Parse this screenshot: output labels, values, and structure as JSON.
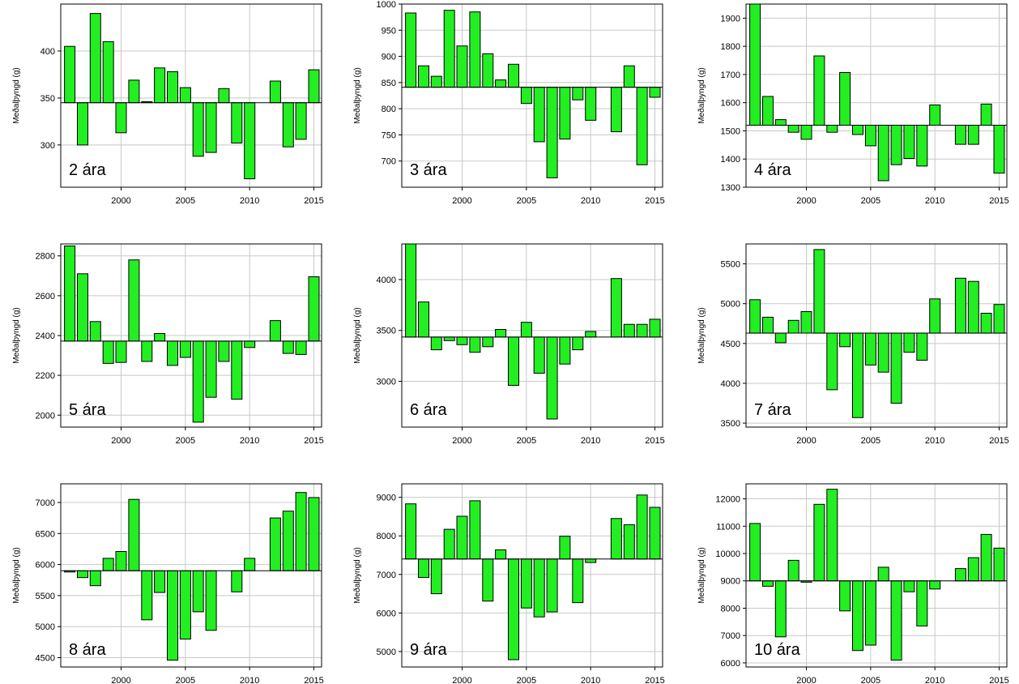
{
  "colors": {
    "bar_fill": "#22ee22",
    "bar_stroke": "#000000",
    "grid": "#c8c8c8",
    "frame": "#000000"
  },
  "chart_data": [
    {
      "type": "bar",
      "title": "",
      "label": "2 ára",
      "ylabel": "Meðalþyngd (g)",
      "years": [
        1996,
        1997,
        1998,
        1999,
        2000,
        2001,
        2002,
        2003,
        2004,
        2005,
        2006,
        2007,
        2008,
        2009,
        2010,
        2011,
        2012,
        2013,
        2014,
        2015
      ],
      "values": [
        405,
        300,
        440,
        410,
        313,
        369,
        346,
        382,
        378,
        361,
        288,
        292,
        360,
        302,
        264,
        null,
        368,
        298,
        306,
        380
      ],
      "baseline": 345,
      "xlim": [
        1995.3,
        2015.6
      ],
      "ylim": [
        255,
        450
      ],
      "xticks": [
        2000,
        2005,
        2010,
        2015
      ],
      "yticks": [
        300,
        350,
        400
      ],
      "grid": true
    },
    {
      "type": "bar",
      "title": "",
      "label": "3 ára",
      "ylabel": "Meðalþyngd (g)",
      "years": [
        1996,
        1997,
        1998,
        1999,
        2000,
        2001,
        2002,
        2003,
        2004,
        2005,
        2006,
        2007,
        2008,
        2009,
        2010,
        2011,
        2012,
        2013,
        2014,
        2015
      ],
      "values": [
        983,
        882,
        862,
        988,
        920,
        985,
        905,
        855,
        885,
        810,
        737,
        668,
        742,
        817,
        778,
        null,
        756,
        882,
        693,
        822
      ],
      "baseline": 841,
      "xlim": [
        1995.3,
        2015.6
      ],
      "ylim": [
        650,
        1000
      ],
      "xticks": [
        2000,
        2005,
        2010,
        2015
      ],
      "yticks": [
        700,
        750,
        800,
        850,
        900,
        950,
        1000
      ],
      "grid": true
    },
    {
      "type": "bar",
      "title": "",
      "label": "4 ára",
      "ylabel": "Meðalþyngd (g)",
      "years": [
        1996,
        1997,
        1998,
        1999,
        2000,
        2001,
        2002,
        2003,
        2004,
        2005,
        2006,
        2007,
        2008,
        2009,
        2010,
        2011,
        2012,
        2013,
        2014,
        2015
      ],
      "values": [
        1962,
        1622,
        1540,
        1495,
        1470,
        1766,
        1495,
        1707,
        1487,
        1447,
        1323,
        1380,
        1402,
        1375,
        1592,
        null,
        1452,
        1452,
        1595,
        1350
      ],
      "baseline": 1520,
      "xlim": [
        1995.3,
        2015.6
      ],
      "ylim": [
        1300,
        1950
      ],
      "xticks": [
        2000,
        2005,
        2010,
        2015
      ],
      "yticks": [
        1300,
        1400,
        1500,
        1600,
        1700,
        1800,
        1900
      ],
      "grid": true
    },
    {
      "type": "bar",
      "title": "",
      "label": "5 ára",
      "ylabel": "Meðalþyngd (g)",
      "years": [
        1996,
        1997,
        1998,
        1999,
        2000,
        2001,
        2002,
        2003,
        2004,
        2005,
        2006,
        2007,
        2008,
        2009,
        2010,
        2011,
        2012,
        2013,
        2014,
        2015
      ],
      "values": [
        2850,
        2710,
        2470,
        2260,
        2265,
        2780,
        2270,
        2410,
        2250,
        2290,
        1965,
        2090,
        2270,
        2080,
        2340,
        null,
        2475,
        2310,
        2305,
        2695
      ],
      "baseline": 2372,
      "xlim": [
        1995.3,
        2015.6
      ],
      "ylim": [
        1940,
        2860
      ],
      "xticks": [
        2000,
        2005,
        2010,
        2015
      ],
      "yticks": [
        2000,
        2200,
        2400,
        2600,
        2800
      ],
      "grid": true
    },
    {
      "type": "bar",
      "title": "",
      "label": "6 ára",
      "ylabel": "Meðalþyngd (g)",
      "years": [
        1996,
        1997,
        1998,
        1999,
        2000,
        2001,
        2002,
        2003,
        2004,
        2005,
        2006,
        2007,
        2008,
        2009,
        2010,
        2011,
        2012,
        2013,
        2014,
        2015
      ],
      "values": [
        4370,
        3780,
        3310,
        3400,
        3360,
        3285,
        3340,
        3510,
        2960,
        3580,
        3080,
        2630,
        3170,
        3310,
        3490,
        null,
        4010,
        3560,
        3560,
        3610
      ],
      "baseline": 3435,
      "xlim": [
        1995.3,
        2015.6
      ],
      "ylim": [
        2550,
        4350
      ],
      "xticks": [
        2000,
        2005,
        2010,
        2015
      ],
      "yticks": [
        3000,
        3500,
        4000
      ],
      "grid": true
    },
    {
      "type": "bar",
      "title": "",
      "label": "7 ára",
      "ylabel": "Meðalþyngd (g)",
      "years": [
        1996,
        1997,
        1998,
        1999,
        2000,
        2001,
        2002,
        2003,
        2004,
        2005,
        2006,
        2007,
        2008,
        2009,
        2010,
        2011,
        2012,
        2013,
        2014,
        2015
      ],
      "values": [
        5050,
        4830,
        4510,
        4790,
        4900,
        5680,
        3920,
        4460,
        3570,
        4230,
        4140,
        3750,
        4390,
        4290,
        5060,
        null,
        5320,
        5280,
        4880,
        4990
      ],
      "baseline": 4630,
      "xlim": [
        1995.3,
        2015.6
      ],
      "ylim": [
        3450,
        5750
      ],
      "xticks": [
        2000,
        2005,
        2010,
        2015
      ],
      "yticks": [
        3500,
        4000,
        4500,
        5000,
        5500
      ],
      "grid": true
    },
    {
      "type": "bar",
      "title": "",
      "label": "8 ára",
      "ylabel": "Meðalþyngd (g)",
      "years": [
        1996,
        1997,
        1998,
        1999,
        2000,
        2001,
        2002,
        2003,
        2004,
        2005,
        2006,
        2007,
        2008,
        2009,
        2010,
        2011,
        2012,
        2013,
        2014,
        2015
      ],
      "values": [
        5880,
        5790,
        5660,
        6100,
        6210,
        7050,
        5110,
        5550,
        4460,
        4800,
        5240,
        4940,
        null,
        5560,
        6100,
        null,
        6750,
        6860,
        7160,
        7080
      ],
      "baseline": 5900,
      "xlim": [
        1995.3,
        2015.6
      ],
      "ylim": [
        4350,
        7300
      ],
      "xticks": [
        2000,
        2005,
        2010,
        2015
      ],
      "yticks": [
        4500,
        5000,
        5500,
        6000,
        6500,
        7000
      ],
      "grid": true
    },
    {
      "type": "bar",
      "title": "",
      "label": "9 ára",
      "ylabel": "Meðalþyngd (g)",
      "years": [
        1996,
        1997,
        1998,
        1999,
        2000,
        2001,
        2002,
        2003,
        2004,
        2005,
        2006,
        2007,
        2008,
        2009,
        2010,
        2011,
        2012,
        2013,
        2014,
        2015
      ],
      "values": [
        8830,
        6920,
        6500,
        8170,
        8510,
        8910,
        6310,
        7640,
        4790,
        6130,
        5900,
        6030,
        7990,
        6270,
        7310,
        null,
        8450,
        8290,
        9060,
        8740
      ],
      "baseline": 7400,
      "xlim": [
        1995.3,
        2015.6
      ],
      "ylim": [
        4600,
        9350
      ],
      "xticks": [
        2000,
        2005,
        2010,
        2015
      ],
      "yticks": [
        5000,
        6000,
        7000,
        8000,
        9000
      ],
      "grid": true
    },
    {
      "type": "bar",
      "title": "",
      "label": "10 ára",
      "ylabel": "Meðalþyngd (g)",
      "years": [
        1996,
        1997,
        1998,
        1999,
        2000,
        2001,
        2002,
        2003,
        2004,
        2005,
        2006,
        2007,
        2008,
        2009,
        2010,
        2011,
        2012,
        2013,
        2014,
        2015
      ],
      "values": [
        11100,
        8800,
        6950,
        9750,
        8950,
        11800,
        12350,
        7900,
        6450,
        6650,
        9500,
        6100,
        8600,
        7350,
        8700,
        null,
        9450,
        9850,
        10700,
        10200
      ],
      "baseline": 9000,
      "xlim": [
        1995.3,
        2015.6
      ],
      "ylim": [
        5850,
        12550
      ],
      "xticks": [
        2000,
        2005,
        2010,
        2015
      ],
      "yticks": [
        6000,
        7000,
        8000,
        9000,
        10000,
        11000,
        12000
      ],
      "grid": true
    }
  ]
}
